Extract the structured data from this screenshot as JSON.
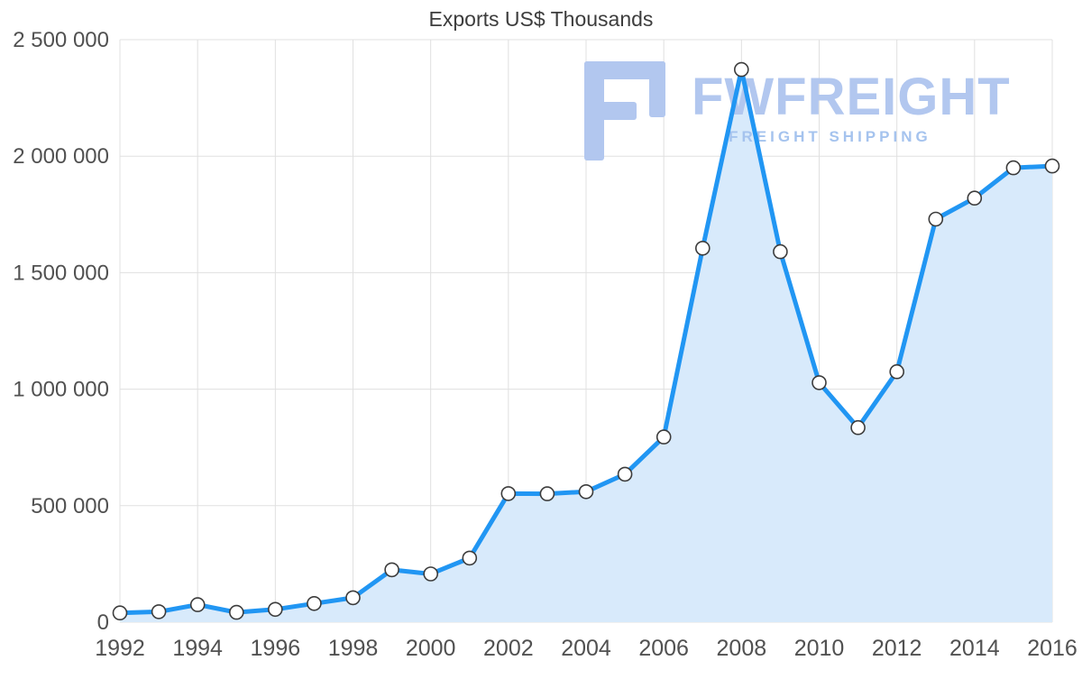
{
  "page_title": "Exports US$ Thousands",
  "watermark": {
    "brand": "FWFREIGHT",
    "tagline": "FREIGHT SHIPPING",
    "color": "#b2c7ef"
  },
  "chart_data": {
    "type": "area",
    "title": "Exports US$ Thousands",
    "xlabel": "",
    "ylabel": "",
    "legend": "none",
    "grid": true,
    "x": [
      1992,
      1993,
      1994,
      1995,
      1996,
      1997,
      1998,
      1999,
      2000,
      2001,
      2002,
      2003,
      2004,
      2005,
      2006,
      2007,
      2008,
      2009,
      2010,
      2011,
      2012,
      2013,
      2014,
      2015,
      2016
    ],
    "values": [
      40000,
      45000,
      75000,
      42000,
      55000,
      80000,
      105000,
      225000,
      207000,
      275000,
      552000,
      551000,
      560000,
      635000,
      795000,
      1605000,
      2372000,
      1590000,
      1028000,
      835000,
      1075000,
      1730000,
      1820000,
      1950000,
      1958000
    ],
    "series_name": "Exports US$ Thousands",
    "xlim": [
      1992,
      2016
    ],
    "ylim": [
      0,
      2500000
    ],
    "xticks": [
      1992,
      1994,
      1996,
      1998,
      2000,
      2002,
      2004,
      2006,
      2008,
      2010,
      2012,
      2014,
      2016
    ],
    "yticks": [
      0,
      500000,
      1000000,
      1500000,
      2000000,
      2500000
    ],
    "ytick_labels": [
      "0",
      "500 000",
      "1 000 000",
      "1 500 000",
      "2 000 000",
      "2 500 000"
    ],
    "colors": {
      "line": "#2196f3",
      "fill": "#d8eafb",
      "marker_fill": "#ffffff",
      "marker_stroke": "#3c3c3c",
      "grid": "#e0e0e0",
      "tick_text": "#515151",
      "title_text": "#3d3d3d"
    }
  }
}
